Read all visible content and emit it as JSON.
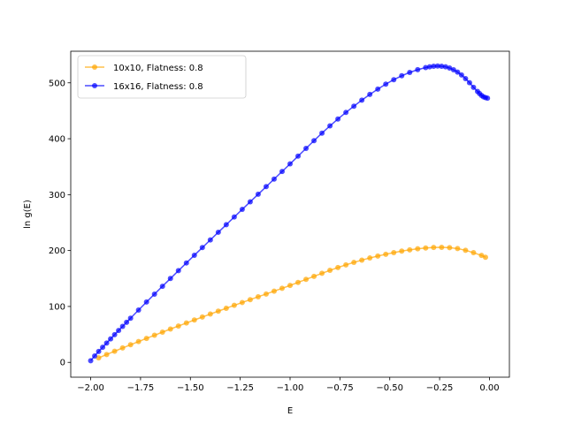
{
  "chart_data": {
    "type": "line",
    "xlabel": "E",
    "ylabel": "ln g(E)",
    "xlim": [
      -2.1,
      0.1
    ],
    "ylim": [
      -26.5,
      556.5
    ],
    "xticks": [
      -2.0,
      -1.75,
      -1.5,
      -1.25,
      -1.0,
      -0.75,
      -0.5,
      -0.25,
      0.0
    ],
    "xtick_labels": [
      "−2.00",
      "−1.75",
      "−1.50",
      "−1.25",
      "−1.00",
      "−0.75",
      "−0.50",
      "−0.25",
      "0.00"
    ],
    "yticks": [
      0,
      100,
      200,
      300,
      400,
      500
    ],
    "ytick_labels": [
      "0",
      "100",
      "200",
      "300",
      "400",
      "500"
    ],
    "grid": false,
    "legend_position": "top-left",
    "series": [
      {
        "name": "10x10, Flatness: 0.8",
        "color": "#ffa500",
        "marker": "circle",
        "alpha": 0.7,
        "x": [
          -1.96,
          -1.92,
          -1.88,
          -1.84,
          -1.8,
          -1.76,
          -1.72,
          -1.68,
          -1.64,
          -1.6,
          -1.56,
          -1.52,
          -1.48,
          -1.44,
          -1.4,
          -1.36,
          -1.32,
          -1.28,
          -1.24,
          -1.2,
          -1.16,
          -1.12,
          -1.08,
          -1.04,
          -1.0,
          -0.96,
          -0.92,
          -0.88,
          -0.84,
          -0.8,
          -0.76,
          -0.72,
          -0.68,
          -0.64,
          -0.6,
          -0.56,
          -0.52,
          -0.48,
          -0.44,
          -0.4,
          -0.36,
          -0.32,
          -0.28,
          -0.24,
          -0.2,
          -0.16,
          -0.12,
          -0.08,
          -0.04,
          -0.02
        ],
        "y": [
          8.0,
          14.0,
          19.9,
          25.8,
          31.5,
          37.2,
          42.9,
          48.5,
          54.1,
          59.6,
          65.0,
          70.4,
          75.8,
          81.1,
          86.4,
          91.6,
          96.8,
          102.0,
          107.1,
          112.2,
          117.3,
          122.3,
          127.4,
          132.4,
          137.6,
          143.0,
          148.4,
          153.9,
          159.3,
          164.6,
          169.6,
          174.4,
          178.8,
          182.9,
          186.7,
          190.2,
          193.4,
          196.3,
          199.0,
          201.3,
          203.2,
          204.6,
          205.5,
          205.8,
          205.2,
          203.5,
          200.5,
          196.2,
          191.3,
          188.0
        ]
      },
      {
        "name": "16x16, Flatness: 0.8",
        "color": "#0000ff",
        "marker": "circle",
        "alpha": 0.7,
        "x": [
          -2.0,
          -1.98,
          -1.96,
          -1.94,
          -1.92,
          -1.9,
          -1.88,
          -1.86,
          -1.84,
          -1.82,
          -1.8,
          -1.76,
          -1.72,
          -1.68,
          -1.64,
          -1.6,
          -1.56,
          -1.52,
          -1.48,
          -1.44,
          -1.4,
          -1.36,
          -1.32,
          -1.28,
          -1.24,
          -1.2,
          -1.16,
          -1.12,
          -1.08,
          -1.04,
          -1.0,
          -0.96,
          -0.92,
          -0.88,
          -0.84,
          -0.8,
          -0.76,
          -0.72,
          -0.68,
          -0.64,
          -0.6,
          -0.56,
          -0.52,
          -0.48,
          -0.44,
          -0.4,
          -0.36,
          -0.32,
          -0.3,
          -0.28,
          -0.26,
          -0.24,
          -0.22,
          -0.2,
          -0.18,
          -0.16,
          -0.14,
          -0.12,
          -0.1,
          -0.08,
          -0.06,
          -0.05,
          -0.04,
          -0.03,
          -0.02,
          -0.01
        ],
        "y": [
          3.0,
          11.5,
          19.5,
          27.0,
          34.5,
          42.0,
          49.5,
          57.0,
          64.3,
          71.7,
          79.0,
          93.6,
          107.9,
          122.1,
          136.1,
          150.0,
          164.0,
          177.8,
          191.6,
          205.3,
          219.0,
          232.7,
          246.3,
          260.0,
          273.6,
          287.2,
          300.7,
          314.3,
          327.8,
          341.4,
          355.0,
          368.8,
          382.7,
          396.5,
          410.0,
          423.0,
          435.3,
          447.0,
          458.2,
          469.0,
          479.2,
          488.8,
          497.6,
          505.6,
          512.6,
          518.6,
          523.5,
          527.3,
          528.6,
          529.6,
          530.0,
          529.7,
          528.6,
          526.5,
          523.3,
          519.2,
          514.0,
          507.6,
          500.2,
          492.0,
          484.6,
          480.8,
          477.5,
          475.0,
          473.6,
          472.5
        ]
      }
    ]
  }
}
